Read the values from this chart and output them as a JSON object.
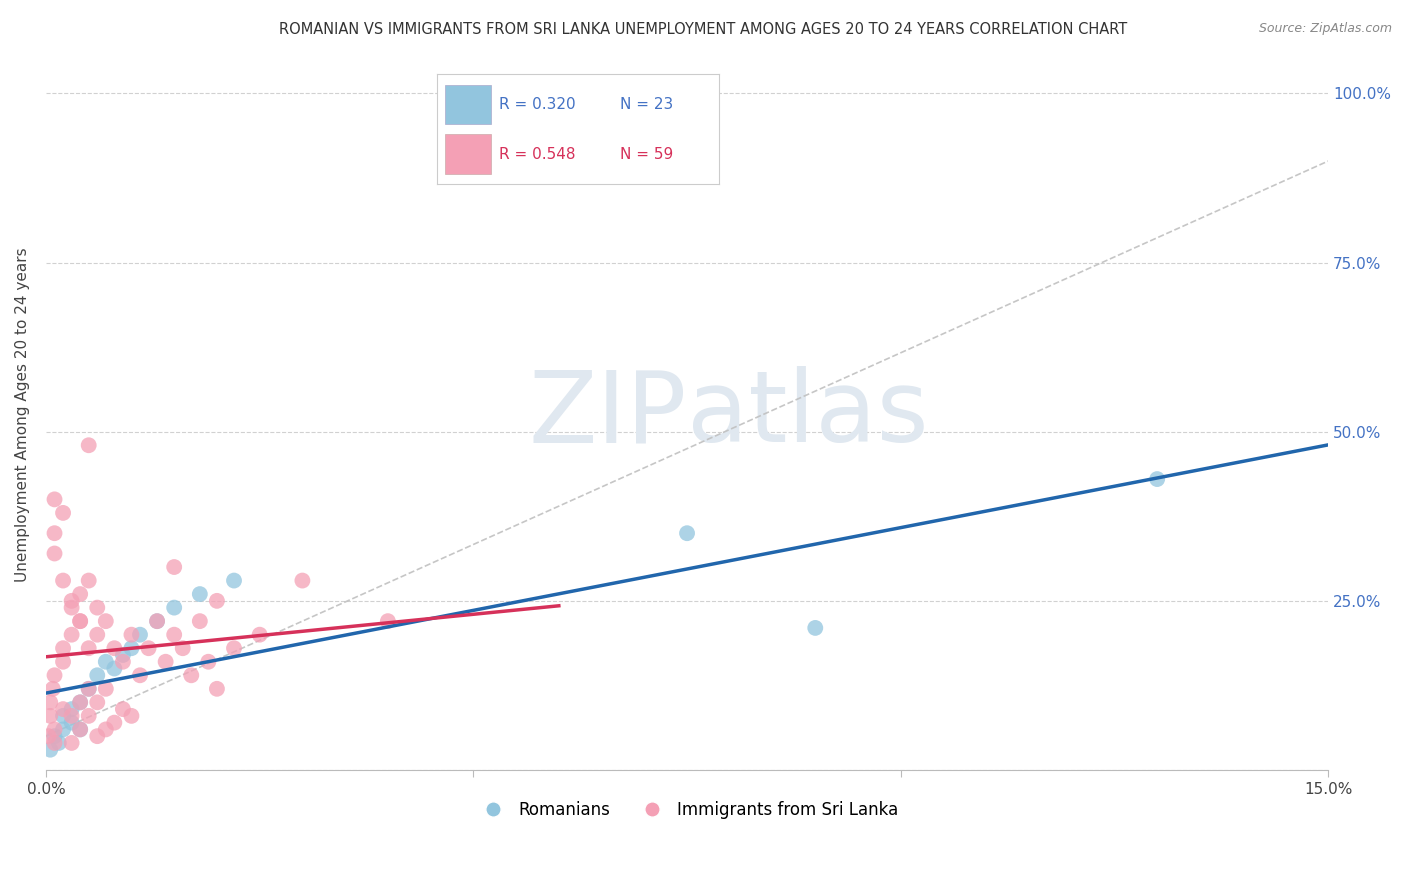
{
  "title": "ROMANIAN VS IMMIGRANTS FROM SRI LANKA UNEMPLOYMENT AMONG AGES 20 TO 24 YEARS CORRELATION CHART",
  "source": "Source: ZipAtlas.com",
  "ylabel": "Unemployment Among Ages 20 to 24 years",
  "xlim": [
    0.0,
    0.15
  ],
  "ylim": [
    0.0,
    1.05
  ],
  "romanian_color": "#92c5de",
  "srilanka_color": "#f4a0b5",
  "romanian_line_color": "#2166ac",
  "srilanka_line_color": "#d6315a",
  "trend_line_color": "#c0c0c0",
  "watermark_color": "#e0e8f0",
  "legend_label_romanian": "Romanians",
  "legend_label_srilanka": "Immigrants from Sri Lanka",
  "background_color": "#ffffff",
  "grid_color": "#cccccc",
  "romanian_x": [
    0.0005,
    0.001,
    0.0015,
    0.002,
    0.002,
    0.003,
    0.003,
    0.004,
    0.004,
    0.005,
    0.006,
    0.007,
    0.008,
    0.009,
    0.01,
    0.011,
    0.013,
    0.015,
    0.018,
    0.022,
    0.075,
    0.09,
    0.13
  ],
  "romanian_y": [
    0.03,
    0.05,
    0.04,
    0.06,
    0.08,
    0.07,
    0.09,
    0.1,
    0.06,
    0.12,
    0.14,
    0.16,
    0.15,
    0.17,
    0.18,
    0.2,
    0.22,
    0.24,
    0.26,
    0.28,
    0.35,
    0.21,
    0.43
  ],
  "srilanka_x": [
    0.0003,
    0.0005,
    0.0005,
    0.0008,
    0.001,
    0.001,
    0.001,
    0.001,
    0.001,
    0.002,
    0.002,
    0.002,
    0.002,
    0.003,
    0.003,
    0.003,
    0.003,
    0.004,
    0.004,
    0.004,
    0.004,
    0.005,
    0.005,
    0.005,
    0.005,
    0.006,
    0.006,
    0.006,
    0.006,
    0.007,
    0.007,
    0.007,
    0.008,
    0.008,
    0.009,
    0.009,
    0.01,
    0.01,
    0.011,
    0.012,
    0.013,
    0.014,
    0.015,
    0.016,
    0.017,
    0.018,
    0.019,
    0.02,
    0.022,
    0.025,
    0.001,
    0.002,
    0.003,
    0.004,
    0.005,
    0.015,
    0.02,
    0.03,
    0.04
  ],
  "srilanka_y": [
    0.05,
    0.08,
    0.1,
    0.12,
    0.14,
    0.32,
    0.35,
    0.06,
    0.04,
    0.16,
    0.09,
    0.38,
    0.18,
    0.2,
    0.08,
    0.24,
    0.04,
    0.22,
    0.1,
    0.26,
    0.06,
    0.18,
    0.28,
    0.08,
    0.12,
    0.2,
    0.1,
    0.24,
    0.05,
    0.22,
    0.12,
    0.06,
    0.18,
    0.07,
    0.16,
    0.09,
    0.2,
    0.08,
    0.14,
    0.18,
    0.22,
    0.16,
    0.2,
    0.18,
    0.14,
    0.22,
    0.16,
    0.12,
    0.18,
    0.2,
    0.4,
    0.28,
    0.25,
    0.22,
    0.48,
    0.3,
    0.25,
    0.28,
    0.22
  ]
}
